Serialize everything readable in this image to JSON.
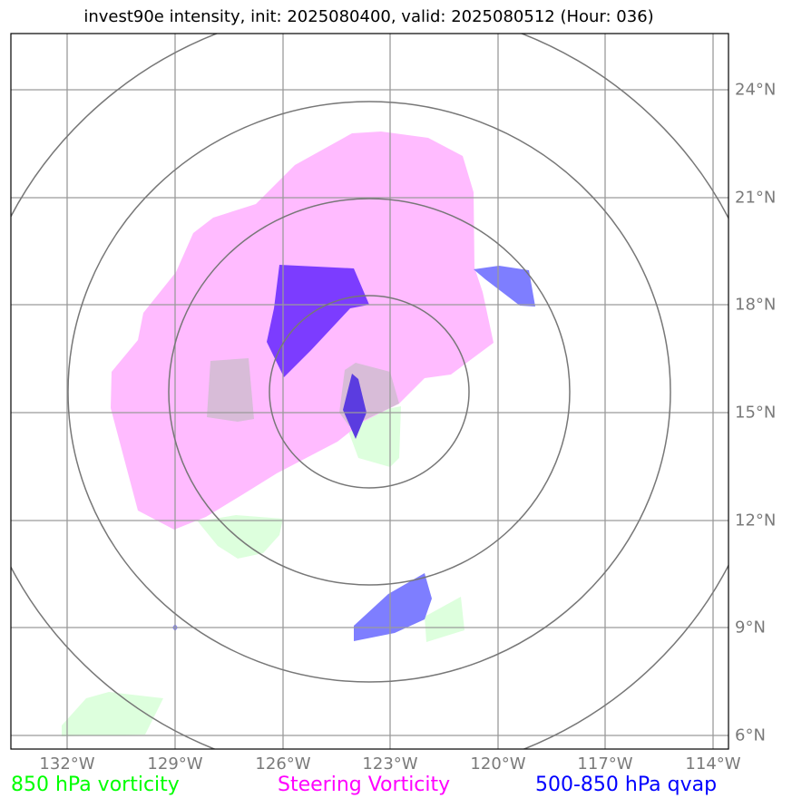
{
  "title": "invest90e intensity, init: 2025080400, valid: 2025080512 (Hour: 036)",
  "map": {
    "lon_labels": [
      "132°W",
      "129°W",
      "126°W",
      "123°W",
      "120°W",
      "117°W",
      "114°W"
    ],
    "lat_labels": [
      "24°N",
      "21°N",
      "18°N",
      "15°N",
      "12°N",
      "9°N",
      "6°N"
    ]
  },
  "legend": {
    "vort850": {
      "label": "850 hPa vorticity",
      "color": "#00ff00"
    },
    "steering": {
      "label": "Steering Vorticity",
      "color": "#ff00ff"
    },
    "qvap": {
      "label": "500-850 hPa qvap",
      "color": "#0000ff"
    }
  },
  "colors": {
    "steering_fill": "#ffbbff",
    "vort850_fill": "#ddffdd",
    "overlap_fill": "#d8bcd8",
    "qvap_light": "#7e7eff",
    "qvap_dark": "#7c3cff",
    "qvap_core": "#5b3ce0",
    "grid": "#9a9a9a",
    "rings": "#777777"
  }
}
